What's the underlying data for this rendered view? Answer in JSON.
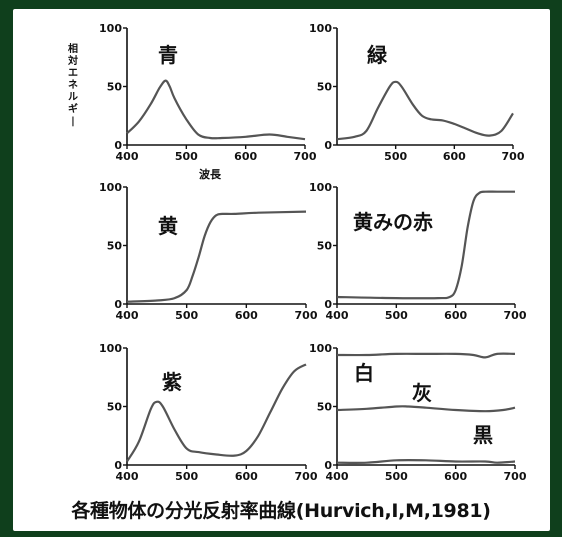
{
  "caption": "各種物体の分光反射率曲線(Hurvich,I,M,1981)",
  "ylabel": "相対エネルギー",
  "xlabel": "波長",
  "colors": {
    "background": "#0f3f1c",
    "panel": "#ffffff",
    "curve": "#555555",
    "axis": "#111111"
  },
  "chart_data": [
    {
      "type": "line",
      "labels": [
        "青"
      ],
      "xlim": [
        400,
        700
      ],
      "ylim": [
        0,
        100
      ],
      "xticks": [
        400,
        500,
        600,
        700
      ],
      "yticks": [
        0,
        50,
        100
      ],
      "series": [
        {
          "x": [
            400,
            420,
            440,
            455,
            465,
            472,
            480,
            500,
            520,
            540,
            560,
            600,
            640,
            670,
            700
          ],
          "y": [
            10,
            20,
            35,
            49,
            55,
            50,
            40,
            22,
            9,
            6,
            6,
            7,
            9,
            7,
            5
          ]
        }
      ]
    },
    {
      "type": "line",
      "labels": [
        "緑"
      ],
      "xlim": [
        400,
        700
      ],
      "ylim": [
        0,
        100
      ],
      "xticks": [
        500,
        600,
        700
      ],
      "yticks": [
        0,
        50,
        100
      ],
      "series": [
        {
          "x": [
            400,
            430,
            450,
            470,
            490,
            500,
            510,
            530,
            545,
            560,
            580,
            600,
            620,
            640,
            660,
            680,
            700
          ],
          "y": [
            5,
            7,
            12,
            32,
            50,
            54,
            50,
            34,
            25,
            22,
            21,
            18,
            14,
            10,
            8,
            12,
            27
          ]
        }
      ]
    },
    {
      "type": "line",
      "labels": [
        "黄"
      ],
      "xlim": [
        400,
        700
      ],
      "ylim": [
        0,
        100
      ],
      "xticks": [
        400,
        500,
        600,
        700
      ],
      "yticks": [
        0,
        50,
        100
      ],
      "series": [
        {
          "x": [
            400,
            450,
            480,
            500,
            510,
            520,
            530,
            540,
            550,
            560,
            580,
            620,
            700
          ],
          "y": [
            2,
            3,
            5,
            12,
            24,
            40,
            58,
            70,
            76,
            77,
            77,
            78,
            79
          ]
        }
      ]
    },
    {
      "type": "line",
      "labels": [
        "黄みの赤"
      ],
      "xlim": [
        400,
        700
      ],
      "ylim": [
        0,
        100
      ],
      "xticks": [
        400,
        500,
        600,
        700
      ],
      "yticks": [
        0,
        50,
        100
      ],
      "series": [
        {
          "x": [
            400,
            500,
            570,
            590,
            600,
            610,
            620,
            630,
            640,
            650,
            670,
            700
          ],
          "y": [
            6,
            5,
            5,
            6,
            12,
            32,
            65,
            88,
            95,
            96,
            96,
            96
          ]
        }
      ]
    },
    {
      "type": "line",
      "labels": [
        "紫"
      ],
      "xlim": [
        400,
        700
      ],
      "ylim": [
        0,
        100
      ],
      "xticks": [
        400,
        500,
        600,
        700
      ],
      "yticks": [
        0,
        50,
        100
      ],
      "series": [
        {
          "x": [
            400,
            420,
            440,
            450,
            460,
            480,
            500,
            520,
            550,
            580,
            600,
            620,
            640,
            660,
            680,
            700
          ],
          "y": [
            3,
            20,
            48,
            54,
            50,
            30,
            14,
            11,
            9,
            8,
            12,
            25,
            45,
            65,
            80,
            86
          ]
        }
      ]
    },
    {
      "type": "line",
      "labels": [
        "白",
        "灰",
        "黒"
      ],
      "xlim": [
        400,
        700
      ],
      "ylim": [
        0,
        100
      ],
      "xticks": [
        400,
        500,
        600,
        700
      ],
      "yticks": [
        0,
        50,
        100
      ],
      "series": [
        {
          "x": [
            400,
            450,
            500,
            550,
            600,
            630,
            650,
            670,
            700
          ],
          "y": [
            94,
            94,
            95,
            95,
            95,
            94,
            92,
            95,
            95
          ]
        },
        {
          "x": [
            400,
            450,
            500,
            520,
            550,
            600,
            650,
            680,
            700
          ],
          "y": [
            47,
            48,
            50,
            50,
            49,
            47,
            46,
            47,
            49
          ]
        },
        {
          "x": [
            400,
            450,
            500,
            550,
            600,
            650,
            670,
            700
          ],
          "y": [
            2,
            2,
            4,
            4,
            3,
            3,
            2,
            3
          ]
        }
      ]
    }
  ]
}
